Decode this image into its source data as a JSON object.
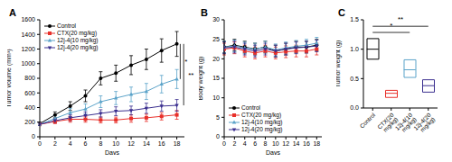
{
  "chart_data": [
    {
      "type": "line",
      "title": "A",
      "xlabel": "Days",
      "ylabel": "Tumor volume (mm³)",
      "x": [
        0,
        2,
        4,
        6,
        8,
        10,
        12,
        14,
        16,
        18
      ],
      "xlim": [
        0,
        19
      ],
      "xticks": [
        0,
        2,
        4,
        6,
        8,
        10,
        12,
        14,
        16,
        18
      ],
      "ylim": [
        0,
        1600
      ],
      "yticks": [
        0,
        200,
        400,
        600,
        800,
        1000,
        1200,
        1400,
        1600
      ],
      "legend": "upper left",
      "series": [
        {
          "name": "Control",
          "color": "#000000",
          "marker": "circle",
          "values": [
            180,
            300,
            420,
            560,
            800,
            870,
            980,
            1060,
            1180,
            1270
          ],
          "errors": [
            20,
            40,
            60,
            80,
            90,
            110,
            130,
            140,
            160,
            170
          ]
        },
        {
          "name": "CTX(20 mg/kg)",
          "color": "#e8302a",
          "marker": "square",
          "values": [
            170,
            210,
            240,
            240,
            230,
            230,
            250,
            260,
            280,
            300
          ],
          "errors": [
            15,
            30,
            40,
            40,
            40,
            40,
            50,
            50,
            50,
            60
          ]
        },
        {
          "name": "12j-4(10 mg/kg)",
          "color": "#5ba3c9",
          "marker": "triangle",
          "values": [
            170,
            250,
            330,
            380,
            480,
            530,
            580,
            620,
            720,
            790
          ],
          "errors": [
            15,
            40,
            60,
            70,
            80,
            90,
            100,
            110,
            120,
            130
          ]
        },
        {
          "name": "12j-4(20 mg/kg)",
          "color": "#3b2f8f",
          "marker": "triangle-down",
          "values": [
            170,
            220,
            260,
            290,
            320,
            350,
            360,
            390,
            420,
            430
          ],
          "errors": [
            15,
            30,
            40,
            50,
            50,
            60,
            60,
            70,
            70,
            80
          ]
        }
      ],
      "annotations": [
        {
          "text": "*",
          "from": "Control",
          "to": "12j-4(10 mg/kg)"
        },
        {
          "text": "**",
          "from": "Control",
          "to": "12j-4(20 mg/kg)"
        }
      ]
    },
    {
      "type": "line",
      "title": "B",
      "xlabel": "Days",
      "ylabel": "Body weight (g)",
      "x": [
        0,
        2,
        4,
        6,
        8,
        10,
        12,
        14,
        16,
        18
      ],
      "xlim": [
        0,
        19
      ],
      "xticks": [
        0,
        2,
        4,
        6,
        8,
        10,
        12,
        14,
        16,
        18
      ],
      "ylim": [
        0,
        30
      ],
      "yticks": [
        0,
        5,
        10,
        15,
        20,
        25,
        30
      ],
      "legend": "lower left",
      "series": [
        {
          "name": "Control",
          "color": "#000000",
          "marker": "circle",
          "values": [
            23,
            23.5,
            23,
            22.5,
            23,
            22,
            22.5,
            23,
            23,
            23.5
          ],
          "errors": [
            1.5,
            1.5,
            1.5,
            1.5,
            1.5,
            1.5,
            1.5,
            1.5,
            1.5,
            1.5
          ]
        },
        {
          "name": "CTX(20 mg/kg)",
          "color": "#e8302a",
          "marker": "square",
          "values": [
            22.5,
            22.8,
            22,
            21.5,
            22,
            21.5,
            21.8,
            22,
            22,
            22.5
          ],
          "errors": [
            1.5,
            1.5,
            1.5,
            1.5,
            1.5,
            1.5,
            1.5,
            1.5,
            1.5,
            1.5
          ]
        },
        {
          "name": "12j-4(10 mg/kg)",
          "color": "#5ba3c9",
          "marker": "triangle",
          "values": [
            23,
            23.3,
            22.8,
            22.5,
            23,
            22.3,
            22.8,
            23.2,
            23.5,
            24
          ],
          "errors": [
            1.5,
            1.5,
            1.5,
            1.5,
            1.5,
            1.5,
            1.5,
            1.5,
            1.5,
            1.5
          ]
        },
        {
          "name": "12j-4(20 mg/kg)",
          "color": "#3b2f8f",
          "marker": "triangle-down",
          "values": [
            22.8,
            23,
            22.5,
            22,
            22.5,
            22,
            22.5,
            22.8,
            23,
            23.3
          ],
          "errors": [
            1.5,
            1.5,
            1.5,
            1.5,
            1.5,
            1.5,
            1.5,
            1.5,
            1.5,
            1.5
          ]
        }
      ]
    },
    {
      "type": "box",
      "title": "C",
      "ylabel": "Tumor weight (g)",
      "categories": [
        "Control",
        "CTX(20 mg/kg)",
        "12j-4(10 mg/kg)",
        "12j-4(20 mg/kg)"
      ],
      "low": [
        0.83,
        0.18,
        0.52,
        0.27
      ],
      "median": [
        1.0,
        0.25,
        0.65,
        0.38
      ],
      "high": [
        1.18,
        0.3,
        0.82,
        0.48
      ],
      "colors": [
        "#000000",
        "#e8302a",
        "#5ba3c9",
        "#3b2f8f"
      ],
      "ylim": [
        0,
        1.5
      ],
      "yticks": [
        {
          "value": 0,
          "label": "0.0"
        },
        0.5,
        {
          "value": 1,
          "label": "1.0"
        },
        1.5
      ],
      "annotations": [
        {
          "text": "*",
          "from": "Control",
          "to": "12j-4(10 mg/kg)"
        },
        {
          "text": "**",
          "from": "Control",
          "to": "12j-4(20 mg/kg)"
        }
      ]
    }
  ]
}
